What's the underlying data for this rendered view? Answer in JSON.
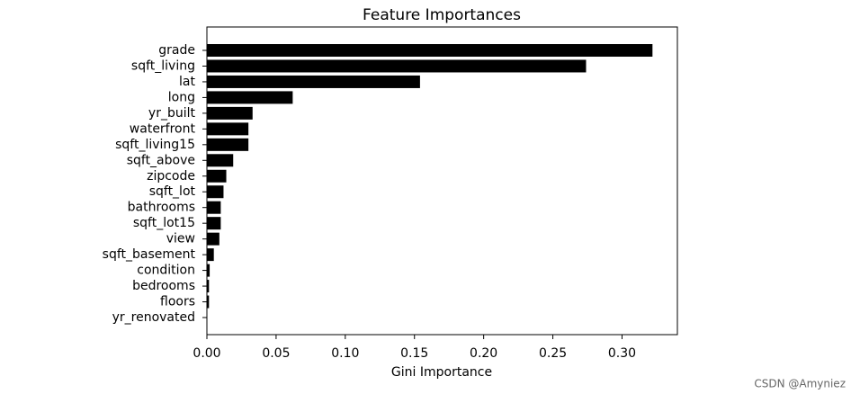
{
  "chart_data": {
    "type": "barh",
    "title": "Feature Importances",
    "xlabel": "Gini Importance",
    "categories": [
      "grade",
      "sqft_living",
      "lat",
      "long",
      "yr_built",
      "waterfront",
      "sqft_living15",
      "sqft_above",
      "zipcode",
      "sqft_lot",
      "bathrooms",
      "sqft_lot15",
      "view",
      "sqft_basement",
      "condition",
      "bedrooms",
      "floors",
      "yr_renovated"
    ],
    "values": [
      0.322,
      0.274,
      0.154,
      0.062,
      0.033,
      0.03,
      0.03,
      0.019,
      0.014,
      0.012,
      0.01,
      0.01,
      0.009,
      0.005,
      0.002,
      0.0015,
      0.0015,
      0.0003
    ],
    "color": "#000000",
    "xlim": [
      0,
      0.34
    ],
    "xticks": [
      {
        "value": 0,
        "label": "0.00"
      },
      {
        "value": 0.05,
        "label": "0.05"
      },
      {
        "value": 0.1,
        "label": "0.10"
      },
      {
        "value": 0.15,
        "label": "0.15"
      },
      {
        "value": 0.2,
        "label": "0.20"
      },
      {
        "value": 0.25,
        "label": "0.25"
      },
      {
        "value": 0.3,
        "label": "0.30"
      }
    ]
  },
  "watermark": "CSDN @Amyniez"
}
